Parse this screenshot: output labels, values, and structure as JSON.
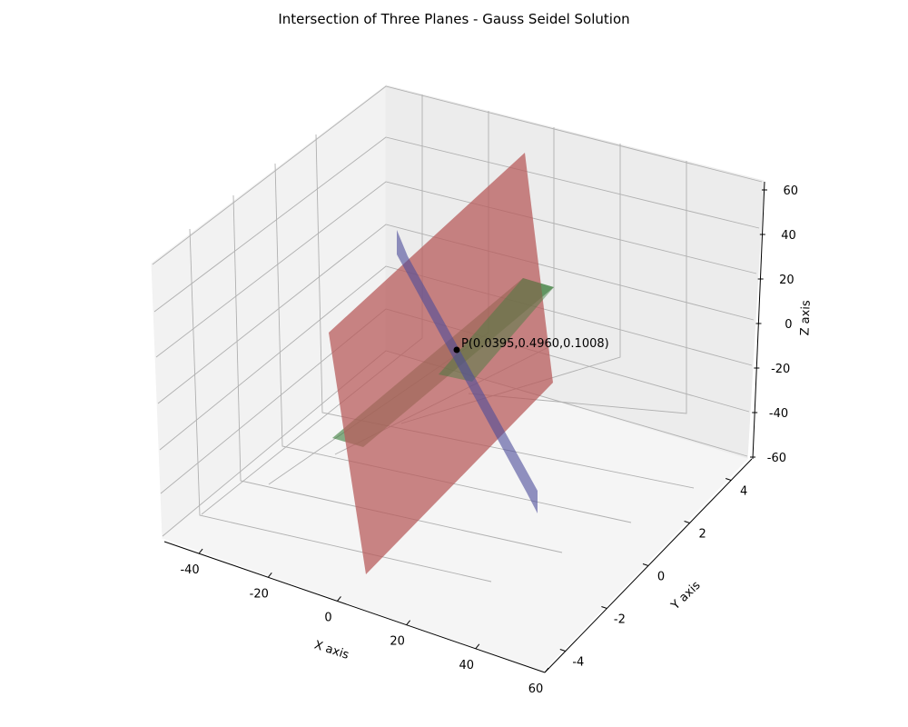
{
  "chart_data": {
    "type": "surface3d",
    "title": "Intersection of Three Planes - Gauss Seidel Solution",
    "xlabel": "X axis",
    "ylabel": "Y axis",
    "zlabel": "Z axis",
    "xlim": [
      -50,
      60
    ],
    "ylim": [
      -5,
      5
    ],
    "zlim": [
      -60,
      60
    ],
    "x_ticks": [
      -40,
      -20,
      0,
      20,
      40,
      60
    ],
    "y_ticks": [
      -4,
      -2,
      0,
      2,
      4
    ],
    "z_ticks": [
      -60,
      -40,
      -20,
      0,
      20,
      40,
      60
    ],
    "grid": true,
    "planes": [
      {
        "color": "#b85c5c",
        "opacity": 0.75
      },
      {
        "color": "#3b7d3b",
        "opacity": 0.6
      },
      {
        "color": "#4b4b9a",
        "opacity": 0.6
      }
    ],
    "points": [
      {
        "label": "P(0.0395,0.4960,0.1008)",
        "x": 0.0395,
        "y": 0.496,
        "z": 0.1008
      }
    ]
  }
}
